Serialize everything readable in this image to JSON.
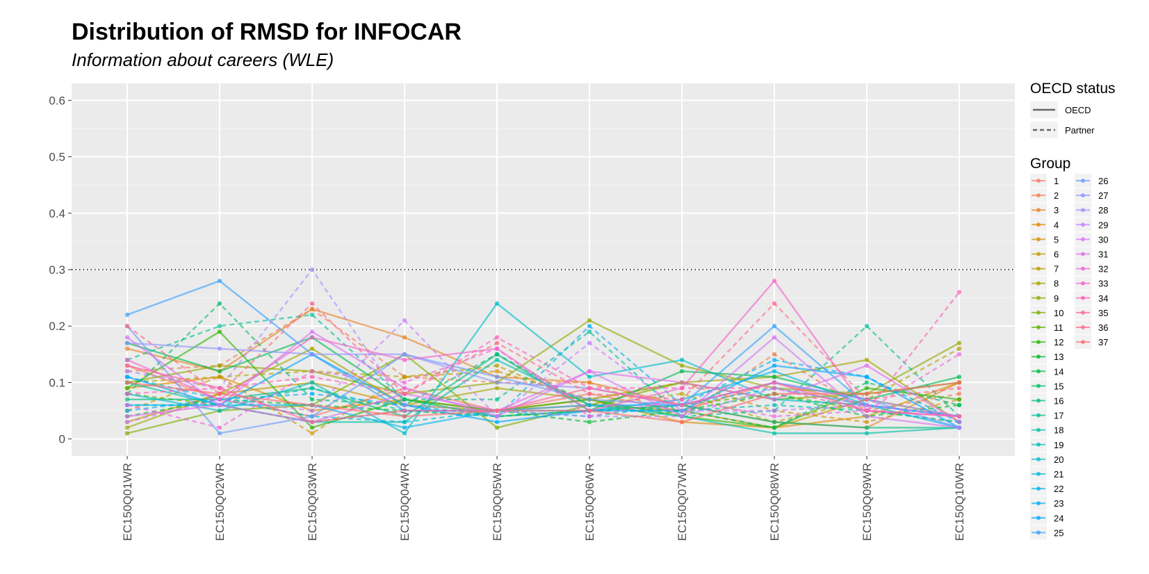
{
  "chart_data": {
    "type": "line",
    "title": "Distribution of RMSD for INFOCAR",
    "subtitle": "Information about careers (WLE)",
    "xlabel": "",
    "ylabel": "",
    "categories": [
      "EC150Q01WR",
      "EC150Q02WR",
      "EC150Q03WR",
      "EC150Q04WR",
      "EC150Q05WR",
      "EC150Q06WR",
      "EC150Q07WR",
      "EC150Q08WR",
      "EC150Q09WR",
      "EC150Q10WR"
    ],
    "ylim": [
      -0.03,
      0.63
    ],
    "yticks": [
      0,
      0.1,
      0.2,
      0.3,
      0.4,
      0.5,
      0.6
    ],
    "ytick_labels": [
      "0",
      "0.1",
      "0.2",
      "0.3",
      "0.4",
      "0.5",
      "0.6"
    ],
    "reference_line": 0.3,
    "grid": true,
    "legend_placement": "right",
    "legend_linetype": {
      "title": "OECD status",
      "entries": [
        {
          "label": "OECD",
          "style": "solid"
        },
        {
          "label": "Partner",
          "style": "dashed"
        }
      ]
    },
    "legend_group_title": "Group",
    "series": [
      {
        "name": "1",
        "status": "OECD",
        "color": "#F8766D",
        "values": [
          0.13,
          0.07,
          0.04,
          0.09,
          0.05,
          0.08,
          0.05,
          0.1,
          0.06,
          0.04
        ]
      },
      {
        "name": "2",
        "status": "Partner",
        "color": "#F17E4F",
        "values": [
          0.12,
          0.13,
          0.23,
          0.11,
          0.1,
          0.1,
          0.04,
          0.15,
          0.05,
          0.08
        ]
      },
      {
        "name": "3",
        "status": "OECD",
        "color": "#E88526",
        "values": [
          0.16,
          0.12,
          0.23,
          0.18,
          0.11,
          0.1,
          0.06,
          0.03,
          0.02,
          0.1
        ]
      },
      {
        "name": "4",
        "status": "OECD",
        "color": "#DE8C00",
        "values": [
          0.09,
          0.11,
          0.05,
          0.07,
          0.05,
          0.07,
          0.03,
          0.02,
          0.04,
          0.1
        ]
      },
      {
        "name": "5",
        "status": "Partner",
        "color": "#D39200",
        "values": [
          0.05,
          0.11,
          0.01,
          0.11,
          0.12,
          0.07,
          0.1,
          0.05,
          0.03,
          0.07
        ]
      },
      {
        "name": "6",
        "status": "OECD",
        "color": "#C59900",
        "values": [
          0.03,
          0.08,
          0.1,
          0.06,
          0.05,
          0.06,
          0.05,
          0.02,
          0.07,
          0.04
        ]
      },
      {
        "name": "7",
        "status": "Partner",
        "color": "#B79F00",
        "values": [
          0.1,
          0.11,
          0.12,
          0.11,
          0.13,
          0.06,
          0.08,
          0.03,
          0.07,
          0.16
        ]
      },
      {
        "name": "8",
        "status": "OECD",
        "color": "#A7A500",
        "values": [
          0.02,
          0.08,
          0.16,
          0.06,
          0.09,
          0.07,
          0.1,
          0.11,
          0.14,
          0.03
        ]
      },
      {
        "name": "9",
        "status": "OECD",
        "color": "#93AA00",
        "values": [
          0.1,
          0.13,
          0.12,
          0.08,
          0.1,
          0.21,
          0.13,
          0.09,
          0.08,
          0.17
        ]
      },
      {
        "name": "10",
        "status": "OECD",
        "color": "#7CAE00",
        "values": [
          0.01,
          0.05,
          0.06,
          0.15,
          0.02,
          0.06,
          0.1,
          0.07,
          0.08,
          0.1
        ]
      },
      {
        "name": "11",
        "status": "Partner",
        "color": "#5EB300",
        "values": [
          0.08,
          0.06,
          0.03,
          0.05,
          0.04,
          0.05,
          0.06,
          0.08,
          0.05,
          0.03
        ]
      },
      {
        "name": "12",
        "status": "OECD",
        "color": "#2EB600",
        "values": [
          0.09,
          0.19,
          0.02,
          0.07,
          0.05,
          0.07,
          0.04,
          0.02,
          0.09,
          0.07
        ]
      },
      {
        "name": "13",
        "status": "Partner",
        "color": "#00B92B",
        "values": [
          0.04,
          0.07,
          0.06,
          0.05,
          0.05,
          0.03,
          0.05,
          0.08,
          0.04,
          0.06
        ]
      },
      {
        "name": "14",
        "status": "OECD",
        "color": "#00BB4E",
        "values": [
          0.17,
          0.12,
          0.18,
          0.07,
          0.04,
          0.05,
          0.12,
          0.11,
          0.07,
          0.11
        ]
      },
      {
        "name": "15",
        "status": "Partner",
        "color": "#00BD6A",
        "values": [
          0.08,
          0.24,
          0.07,
          0.06,
          0.15,
          0.06,
          0.05,
          0.02,
          0.1,
          0.06
        ]
      },
      {
        "name": "16",
        "status": "OECD",
        "color": "#00BF80",
        "values": [
          0.07,
          0.07,
          0.09,
          0.04,
          0.15,
          0.05,
          0.06,
          0.03,
          0.02,
          0.02
        ]
      },
      {
        "name": "17",
        "status": "Partner",
        "color": "#00C094",
        "values": [
          0.14,
          0.2,
          0.22,
          0.07,
          0.07,
          0.19,
          0.04,
          0.05,
          0.2,
          0.04
        ]
      },
      {
        "name": "18",
        "status": "OECD",
        "color": "#00C1A7",
        "values": [
          0.1,
          0.06,
          0.03,
          0.03,
          0.14,
          0.06,
          0.04,
          0.01,
          0.01,
          0.02
        ]
      },
      {
        "name": "19",
        "status": "Partner",
        "color": "#00C0B8",
        "values": [
          0.06,
          0.06,
          0.09,
          0.05,
          0.04,
          0.05,
          0.05,
          0.06,
          0.05,
          0.03
        ]
      },
      {
        "name": "20",
        "status": "OECD",
        "color": "#00BECA",
        "values": [
          0.08,
          0.05,
          0.1,
          0.01,
          0.24,
          0.11,
          0.14,
          0.07,
          0.06,
          0.04
        ]
      },
      {
        "name": "21",
        "status": "Partner",
        "color": "#00BBDA",
        "values": [
          0.11,
          0.07,
          0.04,
          0.03,
          0.05,
          0.04,
          0.06,
          0.09,
          0.06,
          0.04
        ]
      },
      {
        "name": "22",
        "status": "OECD",
        "color": "#00B6E8",
        "values": [
          0.06,
          0.06,
          0.06,
          0.02,
          0.05,
          0.05,
          0.07,
          0.12,
          0.06,
          0.02
        ]
      },
      {
        "name": "23",
        "status": "Partner",
        "color": "#00B0F6",
        "values": [
          0.05,
          0.07,
          0.08,
          0.06,
          0.04,
          0.2,
          0.06,
          0.14,
          0.11,
          0.03
        ]
      },
      {
        "name": "24",
        "status": "OECD",
        "color": "#00A8FF",
        "values": [
          0.11,
          0.06,
          0.15,
          0.06,
          0.03,
          0.05,
          0.05,
          0.13,
          0.11,
          0.02
        ]
      },
      {
        "name": "25",
        "status": "OECD",
        "color": "#35A2FF",
        "values": [
          0.22,
          0.28,
          0.15,
          0.05,
          0.05,
          0.06,
          0.06,
          0.2,
          0.06,
          0.04
        ]
      },
      {
        "name": "26",
        "status": "OECD",
        "color": "#6C9CFF",
        "values": [
          0.2,
          0.01,
          0.04,
          0.15,
          0.11,
          0.07,
          0.06,
          0.1,
          0.07,
          0.02
        ]
      },
      {
        "name": "27",
        "status": "OECD",
        "color": "#8F94FF",
        "values": [
          0.17,
          0.16,
          0.15,
          0.15,
          0.1,
          0.09,
          0.06,
          0.1,
          0.07,
          0.04
        ]
      },
      {
        "name": "28",
        "status": "Partner",
        "color": "#A98BFF",
        "values": [
          0.12,
          0.09,
          0.3,
          0.06,
          0.05,
          0.04,
          0.04,
          0.09,
          0.06,
          0.04
        ]
      },
      {
        "name": "29",
        "status": "Partner",
        "color": "#C77CFF",
        "values": [
          0.03,
          0.07,
          0.05,
          0.21,
          0.04,
          0.17,
          0.05,
          0.05,
          0.06,
          0.04
        ]
      },
      {
        "name": "30",
        "status": "OECD",
        "color": "#D674F6",
        "values": [
          0.18,
          0.06,
          0.19,
          0.09,
          0.04,
          0.12,
          0.04,
          0.18,
          0.04,
          0.02
        ]
      },
      {
        "name": "31",
        "status": "OECD",
        "color": "#E36EEB",
        "values": [
          0.04,
          0.06,
          0.03,
          0.08,
          0.05,
          0.12,
          0.1,
          0.07,
          0.13,
          0.03
        ]
      },
      {
        "name": "32",
        "status": "Partner",
        "color": "#EE67DD",
        "values": [
          0.06,
          0.02,
          0.12,
          0.1,
          0.16,
          0.04,
          0.07,
          0.04,
          0.05,
          0.15
        ]
      },
      {
        "name": "33",
        "status": "OECD",
        "color": "#F663CC",
        "values": [
          0.14,
          0.07,
          0.18,
          0.14,
          0.16,
          0.05,
          0.09,
          0.28,
          0.05,
          0.04
        ]
      },
      {
        "name": "34",
        "status": "Partner",
        "color": "#FB61B8",
        "values": [
          0.08,
          0.09,
          0.11,
          0.08,
          0.18,
          0.09,
          0.09,
          0.09,
          0.05,
          0.26
        ]
      },
      {
        "name": "35",
        "status": "OECD",
        "color": "#FF63A2",
        "values": [
          0.13,
          0.09,
          0.03,
          0.05,
          0.05,
          0.09,
          0.06,
          0.1,
          0.05,
          0.04
        ]
      },
      {
        "name": "36",
        "status": "Partner",
        "color": "#FF6789",
        "values": [
          0.2,
          0.08,
          0.24,
          0.08,
          0.17,
          0.08,
          0.07,
          0.24,
          0.07,
          0.09
        ]
      },
      {
        "name": "37",
        "status": "OECD",
        "color": "#FD6C6F",
        "values": [
          0.1,
          0.08,
          0.06,
          0.04,
          0.05,
          0.05,
          0.03,
          0.08,
          0.08,
          0.1
        ]
      }
    ]
  }
}
